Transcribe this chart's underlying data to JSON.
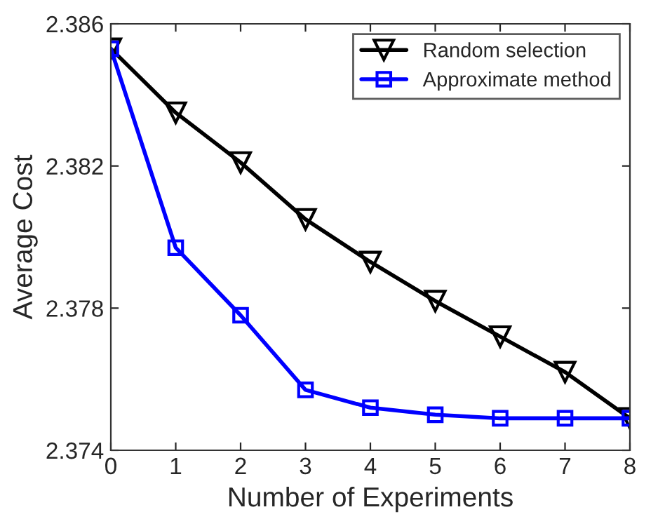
{
  "chart_data": {
    "type": "line",
    "xlabel": "Number of Experiments",
    "ylabel": "Average Cost",
    "x": [
      0,
      1,
      2,
      3,
      4,
      5,
      6,
      7,
      8
    ],
    "series": [
      {
        "name": "Random selection",
        "color": "#000000",
        "marker": "triangle_down",
        "values": [
          2.3853,
          2.3835,
          2.3821,
          2.3805,
          2.3793,
          2.3782,
          2.3772,
          2.3762,
          2.3749
        ]
      },
      {
        "name": "Approximate method",
        "color": "#0000ff",
        "marker": "square",
        "values": [
          2.3853,
          2.3797,
          2.3778,
          2.3757,
          2.3752,
          2.375,
          2.3749,
          2.3749,
          2.3749
        ]
      }
    ],
    "xlim": [
      0,
      8
    ],
    "xticks": [
      0,
      1,
      2,
      3,
      4,
      5,
      6,
      7,
      8
    ],
    "ylim": [
      2.374,
      2.386
    ],
    "yticks": [
      {
        "value": 2.374,
        "label": "2.374"
      },
      {
        "value": 2.378,
        "label": "2.378"
      },
      {
        "value": 2.382,
        "label": "2.382"
      },
      {
        "value": 2.386,
        "label": "2.386"
      }
    ],
    "grid": false,
    "legend": "top right",
    "line_style": "solid"
  }
}
